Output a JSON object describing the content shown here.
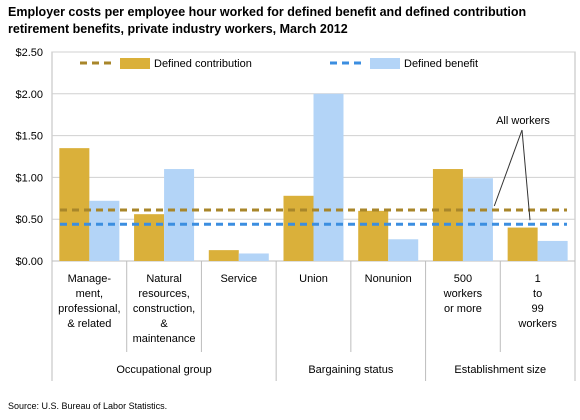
{
  "chart_data": {
    "type": "bar",
    "title": "Employer costs per employee hour worked for defined benefit and defined contribution retirement benefits, private industry workers, March 2012",
    "categories": [
      [
        "Manage-",
        "ment,",
        "professional,",
        "& related"
      ],
      [
        "Natural",
        "resources,",
        "construction,",
        "&",
        "maintenance"
      ],
      [
        "Service"
      ],
      [
        "Union"
      ],
      [
        "Nonunion"
      ],
      [
        "500",
        "workers",
        "or more"
      ],
      [
        "1",
        "to",
        "99",
        "workers"
      ]
    ],
    "groups": [
      {
        "label": "Occupational group",
        "count": 3
      },
      {
        "label": "Bargaining status",
        "count": 2
      },
      {
        "label": "Establishment size",
        "count": 2
      }
    ],
    "series": [
      {
        "name": "Defined contribution",
        "color": "#DAB03A",
        "values": [
          1.35,
          0.56,
          0.13,
          0.78,
          0.6,
          1.1,
          0.4
        ]
      },
      {
        "name": "Defined benefit",
        "color": "#B3D4F7",
        "values": [
          0.72,
          1.1,
          0.09,
          2.0,
          0.26,
          0.99,
          0.24
        ]
      }
    ],
    "reference_lines": [
      {
        "series": "Defined contribution",
        "value": 0.61,
        "color": "#A8862A"
      },
      {
        "series": "Defined benefit",
        "value": 0.44,
        "color": "#3B8EE0"
      }
    ],
    "annotation": "All workers",
    "yticks": [
      0,
      0.5,
      1.0,
      1.5,
      2.0,
      2.5
    ],
    "ytick_labels": [
      "$0.00",
      "$0.50",
      "$1.00",
      "$1.50",
      "$2.00",
      "$2.50"
    ],
    "ylim": [
      0,
      2.5
    ],
    "xlabel": "",
    "ylabel": "",
    "grid": true,
    "legend_position": "top"
  },
  "source": "Source: U.S. Bureau of Labor Statistics."
}
